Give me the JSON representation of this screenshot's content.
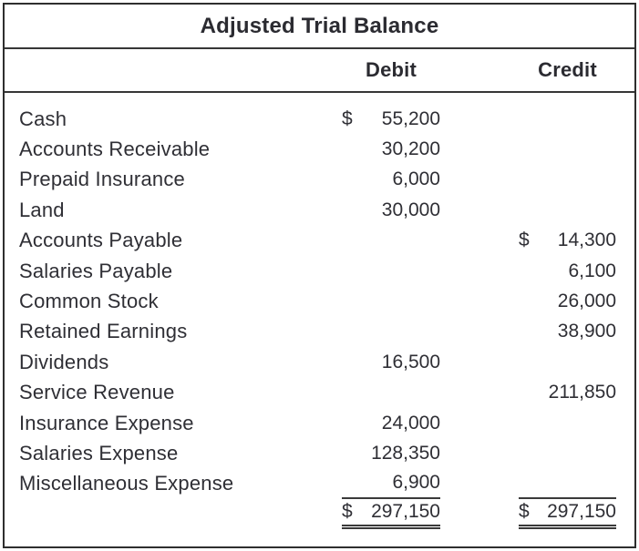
{
  "title": "Adjusted Trial Balance",
  "columns": {
    "debit_label": "Debit",
    "credit_label": "Credit"
  },
  "rows": [
    {
      "account": "Cash",
      "debit_prefix": "$",
      "debit": "55,200",
      "credit_prefix": "",
      "credit": ""
    },
    {
      "account": "Accounts Receivable",
      "debit_prefix": "",
      "debit": "30,200",
      "credit_prefix": "",
      "credit": ""
    },
    {
      "account": "Prepaid Insurance",
      "debit_prefix": "",
      "debit": "6,000",
      "credit_prefix": "",
      "credit": ""
    },
    {
      "account": "Land",
      "debit_prefix": "",
      "debit": "30,000",
      "credit_prefix": "",
      "credit": ""
    },
    {
      "account": "Accounts Payable",
      "debit_prefix": "",
      "debit": "",
      "credit_prefix": "$",
      "credit": "14,300"
    },
    {
      "account": "Salaries Payable",
      "debit_prefix": "",
      "debit": "",
      "credit_prefix": "",
      "credit": "6,100"
    },
    {
      "account": "Common Stock",
      "debit_prefix": "",
      "debit": "",
      "credit_prefix": "",
      "credit": "26,000"
    },
    {
      "account": "Retained Earnings",
      "debit_prefix": "",
      "debit": "",
      "credit_prefix": "",
      "credit": "38,900"
    },
    {
      "account": "Dividends",
      "debit_prefix": "",
      "debit": "16,500",
      "credit_prefix": "",
      "credit": ""
    },
    {
      "account": "Service Revenue",
      "debit_prefix": "",
      "debit": "",
      "credit_prefix": "",
      "credit": "211,850"
    },
    {
      "account": "Insurance Expense",
      "debit_prefix": "",
      "debit": "24,000",
      "credit_prefix": "",
      "credit": ""
    },
    {
      "account": "Salaries Expense",
      "debit_prefix": "",
      "debit": "128,350",
      "credit_prefix": "",
      "credit": ""
    },
    {
      "account": "Miscellaneous Expense",
      "debit_prefix": "",
      "debit": "6,900",
      "credit_prefix": "",
      "credit": ""
    }
  ],
  "totals": {
    "debit_prefix": "$",
    "debit": "297,150",
    "credit_prefix": "$",
    "credit": "297,150"
  },
  "colors": {
    "text": "#2f2f35",
    "border": "#2e2e2e",
    "rule": "#3a3a3a",
    "background": "#ffffff"
  }
}
